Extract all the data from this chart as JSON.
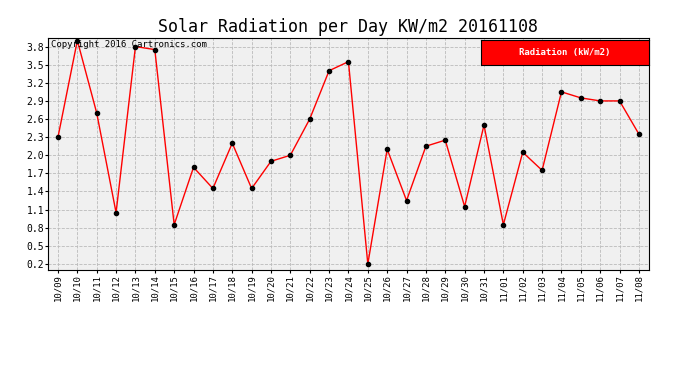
{
  "title": "Solar Radiation per Day KW/m2 20161108",
  "copyright_text": "Copyright 2016 Cartronics.com",
  "legend_label": "Radiation (kW/m2)",
  "x_labels": [
    "10/09",
    "10/10",
    "10/11",
    "10/12",
    "10/13",
    "10/14",
    "10/15",
    "10/16",
    "10/17",
    "10/18",
    "10/19",
    "10/20",
    "10/21",
    "10/22",
    "10/23",
    "10/24",
    "10/25",
    "10/26",
    "10/27",
    "10/28",
    "10/29",
    "10/30",
    "10/31",
    "11/01",
    "11/02",
    "11/03",
    "11/04",
    "11/05",
    "11/06",
    "11/07",
    "11/08"
  ],
  "y_values": [
    2.3,
    3.9,
    2.7,
    1.05,
    3.8,
    3.75,
    0.85,
    1.8,
    1.45,
    2.2,
    1.45,
    1.9,
    2.0,
    2.6,
    3.4,
    3.55,
    0.2,
    2.1,
    1.25,
    2.15,
    2.25,
    1.15,
    2.5,
    0.85,
    2.05,
    1.75,
    3.05,
    2.95,
    2.9,
    2.9,
    2.35
  ],
  "ylim": [
    0.1,
    3.95
  ],
  "yticks": [
    0.2,
    0.5,
    0.8,
    1.1,
    1.4,
    1.7,
    2.0,
    2.3,
    2.6,
    2.9,
    3.2,
    3.5,
    3.8
  ],
  "line_color": "red",
  "marker_color": "black",
  "grid_color": "#bbbbbb",
  "bg_color": "#ffffff",
  "plot_bg_color": "#f0f0f0",
  "title_fontsize": 12,
  "copyright_fontsize": 6.5,
  "legend_bg_color": "#ff0000",
  "legend_text_color": "#ffffff"
}
